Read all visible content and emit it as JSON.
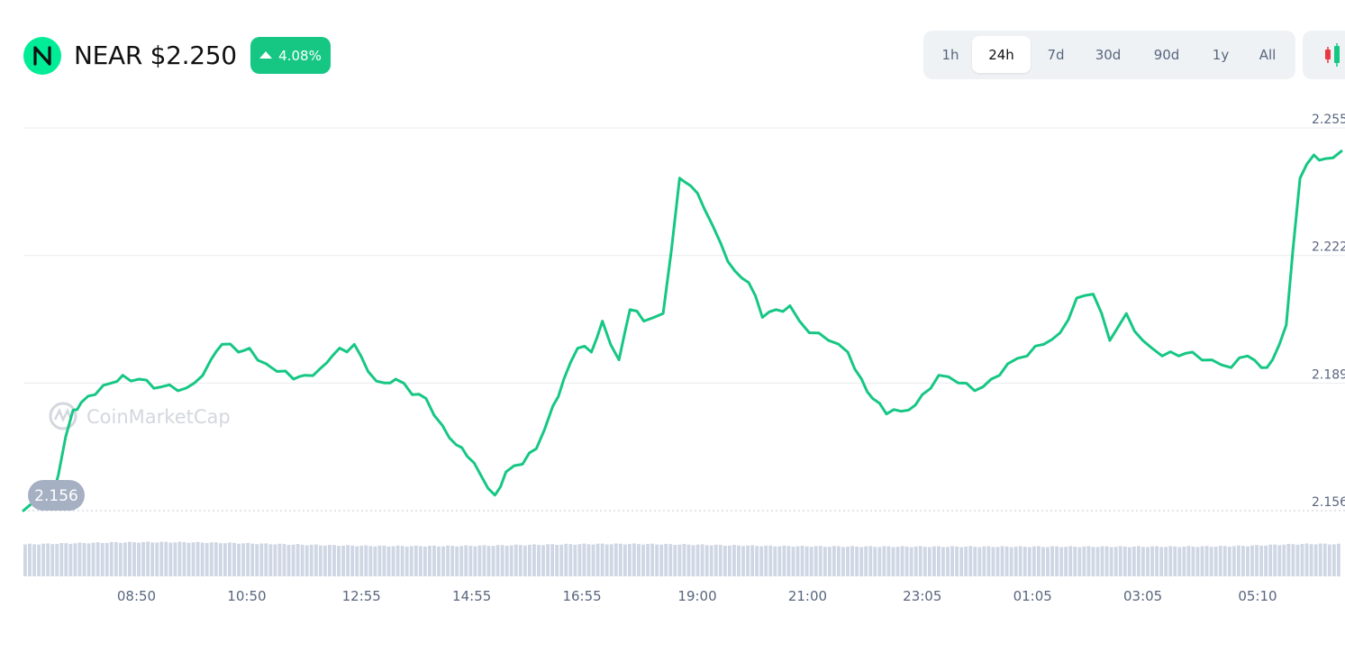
{
  "header": {
    "title": "NEAR $2.250",
    "change": "4.08%",
    "colors": {
      "up": "#16c784",
      "logo_bg": "#00ec97"
    },
    "icons": {
      "logo": "near-logo-icon",
      "change": "triangle-up-icon",
      "chart_type": "candlestick-icon"
    }
  },
  "ranges": {
    "selected": "24h",
    "items": [
      "1h",
      "24h",
      "7d",
      "30d",
      "90d",
      "1y",
      "All"
    ]
  },
  "watermark": "CoinMarketCap",
  "chart_data": {
    "type": "line",
    "title": "",
    "xlabel": "",
    "ylabel": "",
    "ylim": [
      2.156,
      2.255
    ],
    "y_ticks": [
      2.156,
      2.189,
      2.222,
      2.255
    ],
    "y_tick_labels": [
      "2.156",
      "2.189",
      "2.222",
      "2.255"
    ],
    "x_tick_labels": [
      "08:50",
      "10:50",
      "12:55",
      "14:55",
      "16:55",
      "19:00",
      "21:00",
      "23:05",
      "01:05",
      "03:05",
      "05:10"
    ],
    "x_tick_positions": [
      2.05,
      4.05,
      6.13,
      8.13,
      10.13,
      12.22,
      14.22,
      16.3,
      18.3,
      20.3,
      22.38
    ],
    "x_range": [
      0,
      23.9
    ],
    "reference_label": "2.156",
    "reference_value": 2.156,
    "grid": true,
    "line_color": "#16c784",
    "series": [
      {
        "x": [
          0,
          0.3,
          0.5,
          0.9,
          1.05,
          1.3,
          1.6,
          1.8,
          2.1,
          2.5,
          2.8,
          3.1,
          3.4,
          3.6,
          3.9,
          4.1,
          4.4,
          4.6,
          4.9,
          5.1,
          5.4,
          5.6,
          6.0,
          6.25,
          6.55,
          6.75,
          7.05,
          7.3,
          7.6,
          7.85,
          8.05,
          8.3,
          8.55,
          8.75,
          9.05,
          9.3,
          9.6,
          9.8,
          10.05,
          10.3,
          10.5,
          10.8,
          11.0,
          11.25,
          11.6,
          11.9,
          12.1,
          12.35,
          12.65,
          12.9,
          13.15,
          13.4,
          13.65,
          13.9,
          14.25,
          14.6,
          14.95,
          15.2,
          15.4,
          15.65,
          16.05,
          16.3,
          16.6,
          16.95,
          17.25,
          17.55,
          17.85,
          18.2,
          18.5,
          18.8,
          19.1,
          19.4,
          19.7,
          20.0,
          20.3,
          20.65,
          20.95,
          21.2,
          21.55,
          21.9,
          22.2,
          22.45,
          22.65,
          22.9,
          23.15,
          23.4,
          23.6,
          23.9
        ],
        "y": [
          2.156,
          2.158,
          2.158,
          2.182,
          2.184,
          2.186,
          2.189,
          2.191,
          2.19,
          2.188,
          2.187,
          2.189,
          2.195,
          2.199,
          2.197,
          2.198,
          2.194,
          2.192,
          2.19,
          2.191,
          2.193,
          2.196,
          2.199,
          2.192,
          2.189,
          2.19,
          2.186,
          2.185,
          2.178,
          2.173,
          2.17,
          2.165,
          2.16,
          2.166,
          2.168,
          2.172,
          2.183,
          2.19,
          2.198,
          2.197,
          2.205,
          2.195,
          2.208,
          2.205,
          2.207,
          2.242,
          2.24,
          2.234,
          2.225,
          2.218,
          2.215,
          2.206,
          2.208,
          2.209,
          2.202,
          2.2,
          2.197,
          2.19,
          2.185,
          2.181,
          2.182,
          2.186,
          2.191,
          2.189,
          2.187,
          2.19,
          2.194,
          2.196,
          2.199,
          2.202,
          2.211,
          2.212,
          2.2,
          2.207,
          2.2,
          2.196,
          2.196,
          2.197,
          2.195,
          2.193,
          2.196,
          2.193,
          2.195,
          2.204,
          2.242,
          2.248,
          2.247,
          2.249
        ]
      }
    ],
    "volume_bars": true
  }
}
